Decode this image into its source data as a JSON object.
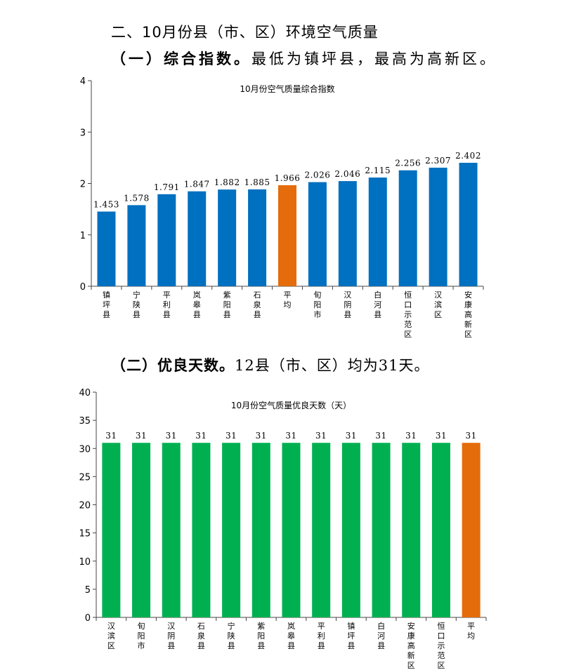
{
  "heading": "二、10月份县（市、区）环境空气质量",
  "section1": {
    "bold": "（一）综合指数。",
    "text": "最低为镇坪县，最高为高新区。"
  },
  "section2": {
    "bold": "（二）优良天数。",
    "text": "12县（市、区）均为31天。"
  },
  "colors": {
    "blue": "#0070C0",
    "orange": "#E46C0A",
    "green": "#00B050"
  },
  "chart_data": [
    {
      "type": "bar",
      "title": "10月份空气质量综合指数",
      "categories": [
        "镇坪县",
        "宁陕县",
        "平利县",
        "岚皋县",
        "紫阳县",
        "石泉县",
        "平均",
        "旬阳市",
        "汉阴县",
        "白河县",
        "恒口示范区",
        "汉滨区",
        "安康高新区"
      ],
      "values": [
        1.453,
        1.578,
        1.791,
        1.847,
        1.882,
        1.885,
        1.966,
        2.026,
        2.046,
        2.115,
        2.256,
        2.307,
        2.402
      ],
      "value_labels": [
        "1.453",
        "1.578",
        "1.791",
        "1.847",
        "1.882",
        "1.885",
        "1.966",
        "2.026",
        "2.046",
        "2.115",
        "2.256",
        "2.307",
        "2.402"
      ],
      "highlight": "平均",
      "bar_color": "#0070C0",
      "highlight_color": "#E46C0A",
      "ylim": [
        0,
        4
      ],
      "yticks": [
        "0",
        "1",
        "2",
        "3",
        "4"
      ],
      "grid": false,
      "legend": "none"
    },
    {
      "type": "bar",
      "title": "10月份空气质量优良天数（天）",
      "categories": [
        "汉滨区",
        "旬阳市",
        "汉阴县",
        "石泉县",
        "宁陕县",
        "紫阳县",
        "岚皋县",
        "平利县",
        "镇坪县",
        "白河县",
        "安康高新区",
        "恒口示范区",
        "平均"
      ],
      "values": [
        31,
        31,
        31,
        31,
        31,
        31,
        31,
        31,
        31,
        31,
        31,
        31,
        31
      ],
      "value_labels": [
        "31",
        "31",
        "31",
        "31",
        "31",
        "31",
        "31",
        "31",
        "31",
        "31",
        "31",
        "31",
        "31"
      ],
      "highlight": "平均",
      "bar_color": "#00B050",
      "highlight_color": "#E46C0A",
      "ylim": [
        0,
        40
      ],
      "yticks": [
        "0",
        "5",
        "10",
        "15",
        "20",
        "25",
        "30",
        "35",
        "40"
      ],
      "grid": false,
      "legend": "none"
    }
  ]
}
